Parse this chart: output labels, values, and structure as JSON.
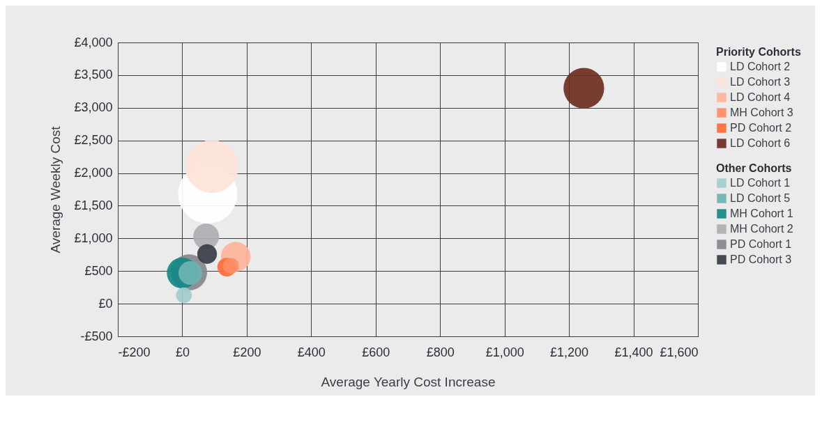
{
  "chart_data": {
    "type": "bubble",
    "xlabel": "Average Yearly Cost Increase",
    "ylabel": "Average Weekly Cost",
    "legend_title": [
      "Priority Cohorts",
      "Other Cohorts"
    ],
    "legend": "right",
    "grid": true,
    "xlim": [
      -200,
      1600
    ],
    "xticks": [
      {
        "value": -200,
        "label": "-£200"
      },
      {
        "value": 0,
        "label": "£0"
      },
      {
        "value": 200,
        "label": "£200"
      },
      {
        "value": 400,
        "label": "£400"
      },
      {
        "value": 600,
        "label": "£600"
      },
      {
        "value": 800,
        "label": "£800"
      },
      {
        "value": 1000,
        "label": "£1,000"
      },
      {
        "value": 1200,
        "label": "£1,200"
      },
      {
        "value": 1400,
        "label": "£1,400"
      },
      {
        "value": 1600,
        "label": "£1,600"
      }
    ],
    "ylim": [
      -500,
      4000
    ],
    "yticks": [
      {
        "value": -500,
        "label": "-£500"
      },
      {
        "value": 0,
        "label": "£0"
      },
      {
        "value": 500,
        "label": "£500"
      },
      {
        "value": 1000,
        "label": "£1,000"
      },
      {
        "value": 1500,
        "label": "£1,500"
      },
      {
        "value": 2000,
        "label": "£2,000"
      },
      {
        "value": 2500,
        "label": "£2,500"
      },
      {
        "value": 3000,
        "label": "£3,000"
      },
      {
        "value": 3500,
        "label": "£3,500"
      },
      {
        "value": 4000,
        "label": "£4,000"
      }
    ],
    "series": [
      {
        "name": "LD Cohort 2",
        "color": "#ffffff",
        "x": [
          79
        ],
        "values": [
          1680
        ],
        "sizes": [
          1
        ]
      },
      {
        "name": "LD Cohort 3",
        "color": "#fde3d8",
        "x": [
          92
        ],
        "values": [
          2100
        ],
        "sizes": [
          0.8
        ]
      },
      {
        "name": "LD Cohort 4",
        "color": "#fdb39a",
        "x": [
          166
        ],
        "values": [
          720
        ],
        "sizes": [
          0.25
        ]
      },
      {
        "name": "MH Cohort 3",
        "color": "#fe8e63",
        "x": [
          151
        ],
        "values": [
          580
        ],
        "sizes": [
          0.07
        ]
      },
      {
        "name": "PD Cohort 2",
        "color": "#fe6d36",
        "x": [
          138
        ],
        "values": [
          560
        ],
        "sizes": [
          0.1
        ]
      },
      {
        "name": "LD Cohort 6",
        "color": "#6b2e1f",
        "x": [
          1246
        ],
        "values": [
          3300
        ],
        "sizes": [
          0.47
        ]
      },
      {
        "name": "LD Cohort 1",
        "color": "#9fcccb",
        "x": [
          5
        ],
        "values": [
          130
        ],
        "sizes": [
          0.07
        ]
      },
      {
        "name": "LD Cohort 5",
        "color": "#6fb3b2",
        "x": [
          25
        ],
        "values": [
          470
        ],
        "sizes": [
          0.16
        ]
      },
      {
        "name": "MH Cohort 1",
        "color": "#148883",
        "x": [
          0
        ],
        "values": [
          470
        ],
        "sizes": [
          0.27
        ]
      },
      {
        "name": "MH Cohort 2",
        "color": "#adaeb1",
        "x": [
          74
        ],
        "values": [
          1030
        ],
        "sizes": [
          0.19
        ]
      },
      {
        "name": "PD Cohort 1",
        "color": "#85878c",
        "x": [
          21
        ],
        "values": [
          480
        ],
        "sizes": [
          0.37
        ]
      },
      {
        "name": "PD Cohort 3",
        "color": "#383c45",
        "x": [
          77
        ],
        "values": [
          760
        ],
        "sizes": [
          0.11
        ]
      }
    ]
  }
}
